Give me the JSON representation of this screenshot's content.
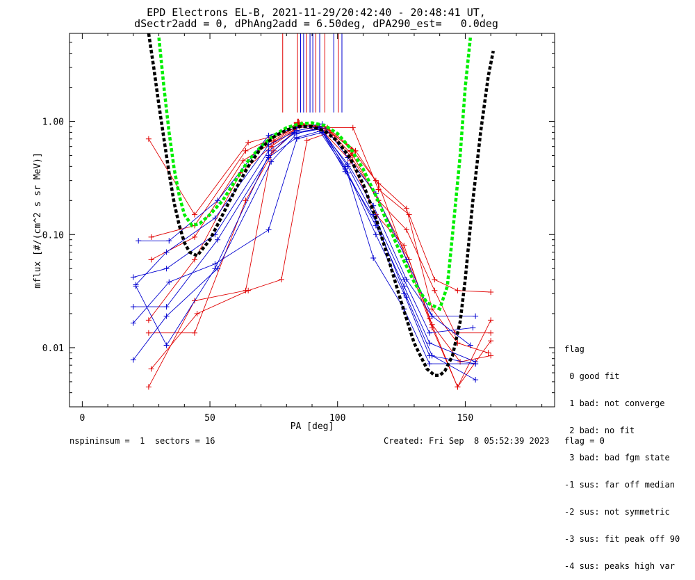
{
  "chart_data": {
    "type": "line",
    "title": "EPD Electrons EL-B, 2021-11-29/20:42:40 - 20:48:41 UT,",
    "subtitle": "dSectr2add = 0, dPhAng2add = 6.50deg, dPA290_est=   0.0deg",
    "xlabel": "PA [deg]",
    "ylabel": "mflux [#/(cm^2 s sr MeV)]",
    "xlim": [
      -5,
      185
    ],
    "ylim": [
      0.003,
      6
    ],
    "yscale": "log",
    "xticks": [
      "0",
      "50",
      "100",
      "150"
    ],
    "yticks": [
      "0.01",
      "0.10",
      "1.00"
    ],
    "colors": {
      "red": "#e00000",
      "blue": "#0000d0",
      "green": "#00ee00",
      "black": "#000000"
    },
    "series": [
      {
        "color": "red",
        "x": [
          26,
          44,
          65,
          74,
          85,
          96,
          107,
          115,
          127,
          137,
          147,
          159
        ],
        "y": [
          0.7,
          0.15,
          0.65,
          0.73,
          0.97,
          0.88,
          0.55,
          0.3,
          0.17,
          0.022,
          0.011,
          0.009
        ]
      },
      {
        "color": "red",
        "x": [
          27,
          44,
          64,
          74,
          86,
          96,
          106,
          116,
          128,
          138,
          147,
          160
        ],
        "y": [
          0.095,
          0.12,
          0.55,
          0.7,
          0.93,
          0.88,
          0.88,
          0.25,
          0.15,
          0.04,
          0.032,
          0.031
        ]
      },
      {
        "color": "red",
        "x": [
          27,
          44,
          63,
          75,
          86,
          95,
          105,
          116,
          127,
          138,
          146,
          160
        ],
        "y": [
          0.06,
          0.095,
          0.45,
          0.66,
          0.93,
          0.86,
          0.5,
          0.2,
          0.11,
          0.032,
          0.0135,
          0.0135
        ]
      },
      {
        "color": "red",
        "x": [
          26,
          44,
          62,
          74,
          85,
          94,
          105,
          115,
          126,
          136,
          147,
          160
        ],
        "y": [
          0.0175,
          0.06,
          0.35,
          0.6,
          0.9,
          0.83,
          0.45,
          0.15,
          0.08,
          0.018,
          0.0045,
          0.0115
        ]
      },
      {
        "color": "red",
        "x": [
          26,
          44,
          64,
          75,
          86,
          95,
          106,
          116,
          128,
          137,
          148,
          160
        ],
        "y": [
          0.0135,
          0.0135,
          0.2,
          0.55,
          0.95,
          0.9,
          0.5,
          0.2,
          0.06,
          0.016,
          0.0075,
          0.0085
        ]
      },
      {
        "color": "red",
        "x": [
          26,
          44,
          64,
          75,
          85,
          96,
          106,
          116,
          127,
          137,
          147,
          160
        ],
        "y": [
          0.0045,
          0.026,
          0.032,
          0.68,
          0.93,
          0.86,
          0.55,
          0.28,
          0.06,
          0.015,
          0.0045,
          0.0175
        ]
      },
      {
        "color": "red",
        "x": [
          27,
          45,
          65,
          78,
          88,
          97,
          107
        ],
        "y": [
          0.0065,
          0.02,
          0.032,
          0.04,
          0.68,
          0.8,
          0.55
        ]
      },
      {
        "color": "blue",
        "x": [
          22,
          34,
          53,
          73,
          84,
          94,
          104,
          115,
          127,
          137,
          154
        ],
        "y": [
          0.088,
          0.088,
          0.2,
          0.75,
          0.88,
          0.95,
          0.48,
          0.23,
          0.06,
          0.019,
          0.019
        ]
      },
      {
        "color": "blue",
        "x": [
          21,
          33,
          52,
          73,
          84,
          93,
          104,
          114,
          126,
          136,
          153
        ],
        "y": [
          0.036,
          0.07,
          0.14,
          0.62,
          0.83,
          0.9,
          0.4,
          0.15,
          0.04,
          0.0135,
          0.015
        ]
      },
      {
        "color": "blue",
        "x": [
          20,
          33,
          52,
          73,
          83,
          94,
          103,
          115,
          126,
          136,
          154
        ],
        "y": [
          0.042,
          0.05,
          0.1,
          0.55,
          0.78,
          0.86,
          0.38,
          0.12,
          0.035,
          0.011,
          0.0075
        ]
      },
      {
        "color": "blue",
        "x": [
          20,
          33,
          53,
          73,
          84,
          93,
          104,
          115,
          126,
          136,
          154
        ],
        "y": [
          0.023,
          0.023,
          0.09,
          0.48,
          0.72,
          0.82,
          0.35,
          0.1,
          0.03,
          0.0085,
          0.0072
        ]
      },
      {
        "color": "blue",
        "x": [
          20,
          34,
          52,
          73,
          84,
          94,
          103,
          114,
          126,
          136,
          154
        ],
        "y": [
          0.0165,
          0.038,
          0.055,
          0.11,
          0.7,
          0.8,
          0.4,
          0.062,
          0.022,
          0.0072,
          0.0072
        ]
      },
      {
        "color": "blue",
        "x": [
          20,
          33,
          53,
          74,
          84,
          93,
          103,
          115,
          127,
          137,
          154
        ],
        "y": [
          0.0078,
          0.019,
          0.05,
          0.44,
          0.78,
          0.88,
          0.36,
          0.13,
          0.028,
          0.0085,
          0.0052
        ]
      },
      {
        "color": "blue",
        "x": [
          21,
          33,
          52,
          73,
          83,
          93,
          104,
          114,
          127,
          137,
          152
        ],
        "y": [
          0.035,
          0.0105,
          0.05,
          0.5,
          0.8,
          0.86,
          0.42,
          0.18,
          0.04,
          0.019,
          0.0105
        ]
      },
      {
        "color": "green",
        "style": "dashed",
        "x": [
          30,
          32,
          34,
          36,
          38,
          40,
          43,
          46,
          50,
          55,
          60,
          65,
          70,
          75,
          80,
          85,
          90,
          95,
          100,
          105,
          110,
          115,
          120,
          125,
          130,
          135,
          140,
          143,
          145,
          148,
          150,
          152
        ],
        "y": [
          5.5,
          2.0,
          0.8,
          0.38,
          0.22,
          0.15,
          0.12,
          0.125,
          0.15,
          0.2,
          0.3,
          0.45,
          0.6,
          0.75,
          0.88,
          0.95,
          0.97,
          0.92,
          0.78,
          0.58,
          0.38,
          0.22,
          0.12,
          0.065,
          0.038,
          0.025,
          0.022,
          0.035,
          0.1,
          0.5,
          2.0,
          5.5
        ]
      },
      {
        "color": "black",
        "style": "dashed",
        "x": [
          26,
          28,
          30,
          32,
          34,
          36,
          38,
          40,
          42,
          45,
          50,
          55,
          60,
          65,
          70,
          75,
          80,
          85,
          90,
          95,
          100,
          105,
          110,
          115,
          120,
          125,
          130,
          135,
          138,
          140,
          142,
          145,
          148,
          150,
          153,
          156,
          159,
          161
        ],
        "y": [
          6.0,
          3.0,
          1.4,
          0.7,
          0.35,
          0.19,
          0.12,
          0.085,
          0.07,
          0.065,
          0.09,
          0.15,
          0.25,
          0.4,
          0.58,
          0.73,
          0.84,
          0.9,
          0.9,
          0.82,
          0.67,
          0.47,
          0.28,
          0.14,
          0.06,
          0.025,
          0.011,
          0.0065,
          0.0057,
          0.0057,
          0.0062,
          0.0085,
          0.017,
          0.04,
          0.2,
          0.8,
          2.5,
          4.2
        ]
      }
    ],
    "markers": [
      {
        "x": 84.5,
        "y": 0.97,
        "color": "red"
      },
      {
        "x": 105.5,
        "y": 0.55,
        "color": "red"
      }
    ],
    "vlines": [
      {
        "x": 78.5,
        "color": "red"
      },
      {
        "x": 84.3,
        "color": "red"
      },
      {
        "x": 85.5,
        "color": "blue"
      },
      {
        "x": 86.7,
        "color": "blue"
      },
      {
        "x": 87.8,
        "color": "red"
      },
      {
        "x": 89.2,
        "color": "blue"
      },
      {
        "x": 90.3,
        "color": "blue"
      },
      {
        "x": 91.5,
        "color": "red"
      },
      {
        "x": 93.0,
        "color": "blue"
      },
      {
        "x": 95.0,
        "color": "red"
      },
      {
        "x": 98.5,
        "color": "blue"
      },
      {
        "x": 100.3,
        "color": "red"
      },
      {
        "x": 101.7,
        "color": "blue"
      }
    ],
    "vline_range": [
      1.2,
      6
    ],
    "legend": {
      "title": "flag",
      "items": [
        " 0 good fit",
        " 1 bad: not converge",
        " 2 bad: no fit",
        " 3 bad: bad fgm state",
        "-1 sus: far off median",
        "-2 sus: not symmetric",
        "-3 sus: fit peak off 90",
        "-4 sus: peaks high var"
      ]
    }
  },
  "footer": {
    "left": "nspininsum =  1  sectors = 16",
    "right": "Created: Fri Sep  8 05:52:39 2023   flag = 0"
  }
}
